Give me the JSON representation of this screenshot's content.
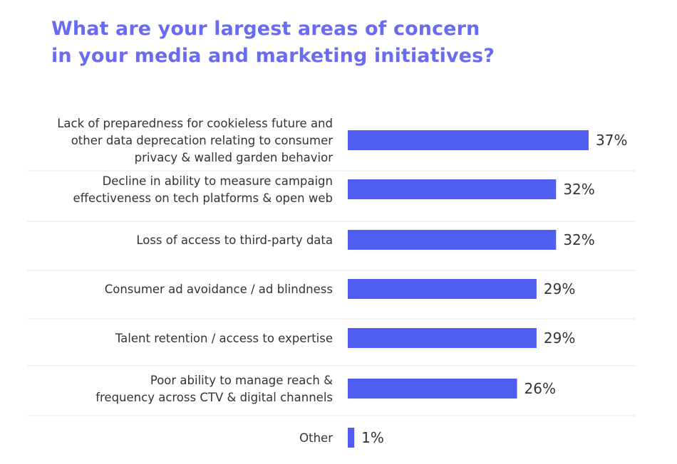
{
  "title_lines": [
    "What are your largest areas of concern",
    "in your media and marketing initiatives?"
  ],
  "colors": {
    "title": "#6a6cf0",
    "bar": "#4f5ef0",
    "divider": "#e4e4e4",
    "text": "#333333"
  },
  "chart_data": {
    "type": "bar",
    "orientation": "horizontal",
    "title": "What are your largest areas of concern in your media and marketing initiatives?",
    "categories": [
      [
        "Lack of preparedness for cookieless future and",
        "other data deprecation relating to consumer",
        "privacy & walled garden behavior"
      ],
      [
        "Decline in ability to measure campaign",
        "effectiveness on tech platforms & open web"
      ],
      [
        "Loss of access to third-party data"
      ],
      [
        "Consumer ad avoidance / ad blindness"
      ],
      [
        "Talent retention / access to expertise"
      ],
      [
        "Poor ability to manage reach &",
        "frequency across CTV & digital channels"
      ],
      [
        "Other"
      ]
    ],
    "values": [
      37,
      32,
      32,
      29,
      29,
      26,
      1
    ],
    "value_labels": [
      "37%",
      "32%",
      "32%",
      "29%",
      "29%",
      "26%",
      "1%"
    ],
    "xlim": [
      0,
      40
    ],
    "grid": false,
    "legend": "none"
  }
}
